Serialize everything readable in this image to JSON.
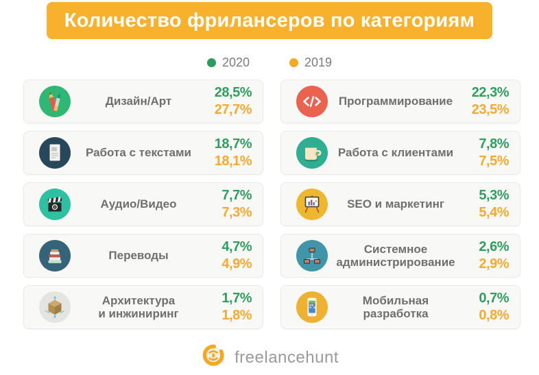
{
  "header": {
    "title": "Количество фрилансеров по категориям",
    "bg_color": "#F8B12D"
  },
  "legend": {
    "items": [
      {
        "label": "2020",
        "color": "#2A9D5C"
      },
      {
        "label": "2019",
        "color": "#F7A823"
      }
    ]
  },
  "values_colors": {
    "y2020": "#2F9E5F",
    "y2019": "#F5A930"
  },
  "cards": {
    "left": [
      {
        "icon": "design-art-icon",
        "icon_bg": "#2EB873",
        "label": "Дизайн/Арт",
        "value_2020": "28,5%",
        "value_2019": "27,7%"
      },
      {
        "icon": "document-icon",
        "icon_bg": "#29475A",
        "label": "Работа с текстами",
        "value_2020": "18,7%",
        "value_2019": "18,1%"
      },
      {
        "icon": "clapperboard-icon",
        "icon_bg": "#2EC0A0",
        "label": "Аудио/Видео",
        "value_2020": "7,7%",
        "value_2019": "7,3%"
      },
      {
        "icon": "books-icon",
        "icon_bg": "#35647A",
        "label": "Переводы",
        "value_2020": "4,7%",
        "value_2019": "4,9%"
      },
      {
        "icon": "cube-icon",
        "icon_bg": "#E4E4E0",
        "label": "Архитектура\nи инжиниринг",
        "value_2020": "1,7%",
        "value_2019": "1,8%"
      }
    ],
    "right": [
      {
        "icon": "code-icon",
        "icon_bg": "#E96350",
        "label": "Программирование",
        "value_2020": "22,3%",
        "value_2019": "23,5%"
      },
      {
        "icon": "mug-icon",
        "icon_bg": "#2FAE92",
        "label": "Работа с клиентами",
        "value_2020": "7,8%",
        "value_2019": "7,5%"
      },
      {
        "icon": "presentation-icon",
        "icon_bg": "#EDB72F",
        "label": "SEO и маркетинг",
        "value_2020": "5,3%",
        "value_2019": "5,4%"
      },
      {
        "icon": "network-icon",
        "icon_bg": "#4095A8",
        "label": "Системное\nадминистрирование",
        "value_2020": "2,6%",
        "value_2019": "2,9%"
      },
      {
        "icon": "smartphone-icon",
        "icon_bg": "#EDB234",
        "label": "Мобильная разработка",
        "value_2020": "0,7%",
        "value_2019": "0,8%"
      }
    ]
  },
  "footer": {
    "brand": "freelancehunt",
    "logo_color": "#F7A823"
  },
  "chart_data": {
    "type": "table",
    "title": "Количество фрилансеров по категориям",
    "unit": "%",
    "legend_position": "top",
    "categories": [
      "Дизайн/Арт",
      "Работа с текстами",
      "Аудио/Видео",
      "Переводы",
      "Архитектура и инжиниринг",
      "Программирование",
      "Работа с клиентами",
      "SEO и маркетинг",
      "Системное администрирование",
      "Мобильная разработка"
    ],
    "series": [
      {
        "name": "2020",
        "values": [
          28.5,
          18.7,
          7.7,
          4.7,
          1.7,
          22.3,
          7.8,
          5.3,
          2.6,
          0.7
        ]
      },
      {
        "name": "2019",
        "values": [
          27.7,
          18.1,
          7.3,
          4.9,
          1.8,
          23.5,
          7.5,
          5.4,
          2.9,
          0.8
        ]
      }
    ]
  }
}
